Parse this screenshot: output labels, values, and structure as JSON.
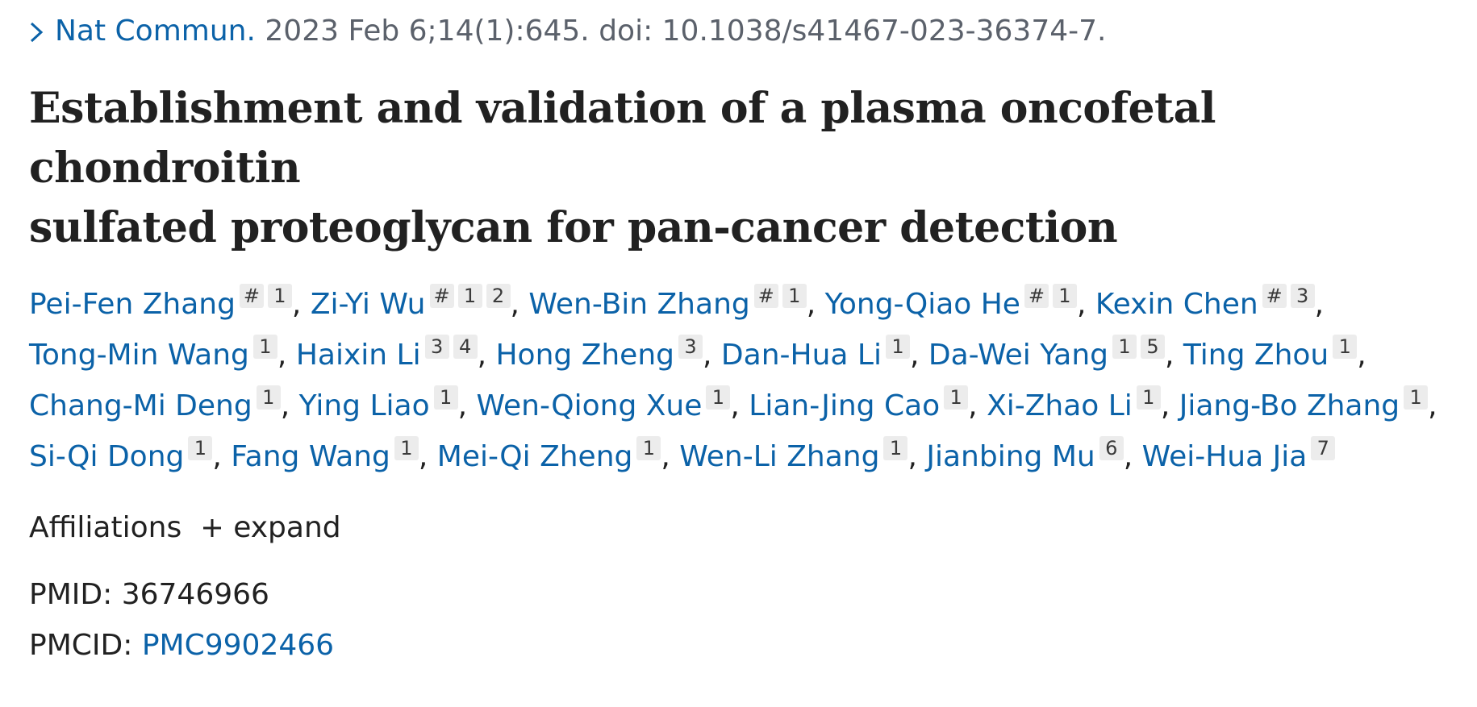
{
  "citation": {
    "journal": "Nat Commun.",
    "details": "2023 Feb 6;14(1):645. doi: 10.1038/s41467-023-36374-7."
  },
  "title_line1": "Establishment and validation of a plasma oncofetal chondroitin",
  "title_line2": "sulfated proteoglycan for pan-cancer detection",
  "authors": [
    {
      "name": "Pei-Fen Zhang",
      "sups": [
        "#",
        "1"
      ]
    },
    {
      "name": "Zi-Yi Wu",
      "sups": [
        "#",
        "1",
        "2"
      ]
    },
    {
      "name": "Wen-Bin Zhang",
      "sups": [
        "#",
        "1"
      ]
    },
    {
      "name": "Yong-Qiao He",
      "sups": [
        "#",
        "1"
      ]
    },
    {
      "name": "Kexin Chen",
      "sups": [
        "#",
        "3"
      ]
    },
    {
      "name": "Tong-Min Wang",
      "sups": [
        "1"
      ]
    },
    {
      "name": "Haixin Li",
      "sups": [
        "3",
        "4"
      ]
    },
    {
      "name": "Hong Zheng",
      "sups": [
        "3"
      ]
    },
    {
      "name": "Dan-Hua Li",
      "sups": [
        "1"
      ]
    },
    {
      "name": "Da-Wei Yang",
      "sups": [
        "1",
        "5"
      ]
    },
    {
      "name": "Ting Zhou",
      "sups": [
        "1"
      ]
    },
    {
      "name": "Chang-Mi Deng",
      "sups": [
        "1"
      ]
    },
    {
      "name": "Ying Liao",
      "sups": [
        "1"
      ]
    },
    {
      "name": "Wen-Qiong Xue",
      "sups": [
        "1"
      ]
    },
    {
      "name": "Lian-Jing Cao",
      "sups": [
        "1"
      ]
    },
    {
      "name": "Xi-Zhao Li",
      "sups": [
        "1"
      ]
    },
    {
      "name": "Jiang-Bo Zhang",
      "sups": [
        "1"
      ]
    },
    {
      "name": "Si-Qi Dong",
      "sups": [
        "1"
      ]
    },
    {
      "name": "Fang Wang",
      "sups": [
        "1"
      ]
    },
    {
      "name": "Mei-Qi Zheng",
      "sups": [
        "1"
      ]
    },
    {
      "name": "Wen-Li Zhang",
      "sups": [
        "1"
      ]
    },
    {
      "name": "Jianbing Mu",
      "sups": [
        "6"
      ]
    },
    {
      "name": "Wei-Hua Jia",
      "sups": [
        "7"
      ]
    }
  ],
  "affiliations": {
    "label": "Affiliations",
    "expand_label": "expand"
  },
  "ids": {
    "pmid_label": "PMID:",
    "pmid_value": "36746966",
    "pmcid_label": "PMCID:",
    "pmcid_value": "PMC9902466"
  },
  "icons": {
    "citation": "chevron-right-icon",
    "expand": "plus-icon"
  },
  "colors": {
    "link": "#0b62a8",
    "text": "#212121",
    "muted": "#5b616b",
    "badge_bg": "#ececec"
  }
}
